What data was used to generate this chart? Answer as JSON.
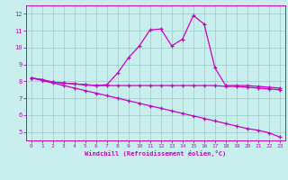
{
  "xlabel": "Windchill (Refroidissement éolien,°C)",
  "bg_color": "#c8eeee",
  "line_color": "#cc00cc",
  "grid_color": "#99cccc",
  "xlim": [
    -0.5,
    23.5
  ],
  "ylim": [
    4.5,
    12.5
  ],
  "xticks": [
    0,
    1,
    2,
    3,
    4,
    5,
    6,
    7,
    8,
    9,
    10,
    11,
    12,
    13,
    14,
    15,
    16,
    17,
    18,
    19,
    20,
    21,
    22,
    23
  ],
  "yticks": [
    5,
    6,
    7,
    8,
    9,
    10,
    11,
    12
  ],
  "line1_x": [
    0,
    1,
    2,
    3,
    4,
    5,
    6,
    7,
    8,
    9,
    10,
    11,
    12,
    13,
    14,
    15,
    16,
    17,
    18,
    19,
    20,
    21,
    22,
    23
  ],
  "line1_y": [
    8.2,
    8.1,
    7.95,
    7.9,
    7.85,
    7.8,
    7.75,
    7.8,
    8.5,
    9.4,
    10.1,
    11.05,
    11.1,
    10.1,
    10.5,
    11.9,
    11.4,
    8.8,
    7.75,
    7.75,
    7.75,
    7.7,
    7.65,
    7.6
  ],
  "line2_x": [
    0,
    1,
    2,
    3,
    4,
    5,
    6,
    7,
    8,
    9,
    10,
    11,
    12,
    13,
    14,
    15,
    16,
    17,
    18,
    19,
    20,
    21,
    22,
    23
  ],
  "line2_y": [
    8.2,
    8.05,
    7.9,
    7.75,
    7.6,
    7.45,
    7.3,
    7.15,
    7.0,
    6.85,
    6.7,
    6.55,
    6.4,
    6.25,
    6.1,
    5.95,
    5.8,
    5.65,
    5.5,
    5.35,
    5.2,
    5.1,
    4.95,
    4.7
  ],
  "line3_x": [
    0,
    1,
    2,
    3,
    4,
    5,
    6,
    7,
    8,
    9,
    10,
    11,
    12,
    13,
    14,
    15,
    16,
    17,
    18,
    19,
    20,
    21,
    22,
    23
  ],
  "line3_y": [
    8.2,
    8.1,
    7.95,
    7.9,
    7.85,
    7.8,
    7.75,
    7.75,
    7.75,
    7.75,
    7.75,
    7.75,
    7.75,
    7.75,
    7.75,
    7.75,
    7.75,
    7.75,
    7.7,
    7.7,
    7.65,
    7.6,
    7.55,
    7.5
  ]
}
